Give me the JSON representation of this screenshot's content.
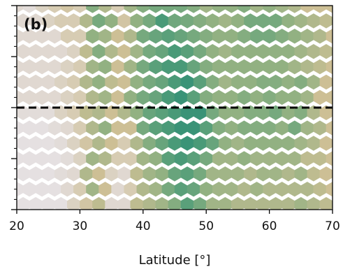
{
  "chart_data": {
    "type": "heatmap",
    "title": "",
    "panel_label": "(b)",
    "xlabel": "Latitude [°]",
    "ylabel": "",
    "xlim": [
      20,
      70
    ],
    "xticks": [
      20,
      30,
      40,
      50,
      60,
      70
    ],
    "xtick_labels": [
      "20",
      "30",
      "40",
      "50",
      "60",
      "70"
    ],
    "ylim": [
      0,
      20
    ],
    "reference_line": {
      "y": 10,
      "style": "dashed",
      "color": "#000000"
    },
    "colormap": [
      "#e9e7f1",
      "#e0d8d1",
      "#cdbf95",
      "#92b182",
      "#5aa07a",
      "#1a8673"
    ],
    "grid": false,
    "legend": "none",
    "hex_rows": [
      {
        "y": 20,
        "x": [
          20,
          22,
          24,
          26,
          28,
          30,
          32,
          34,
          36,
          38,
          40,
          42,
          44,
          46,
          48,
          50,
          52,
          54,
          56,
          58,
          60,
          62,
          64,
          66,
          68,
          70
        ],
        "v": [
          0.2,
          0.15,
          0.25,
          0.3,
          0.35,
          0.3,
          0.65,
          0.5,
          0.3,
          0.55,
          0.65,
          0.7,
          0.7,
          0.7,
          0.65,
          0.55,
          0.6,
          0.6,
          0.65,
          0.55,
          0.6,
          0.55,
          0.5,
          0.4,
          0.4,
          0.4
        ]
      },
      {
        "y": 18.5,
        "x": [
          21,
          23,
          25,
          27,
          29,
          31,
          33,
          35,
          37,
          39,
          41,
          43,
          45,
          47,
          49,
          51,
          53,
          55,
          57,
          59,
          61,
          63,
          65,
          67,
          69
        ],
        "v": [
          0.2,
          0.2,
          0.25,
          0.3,
          0.3,
          0.5,
          0.7,
          0.6,
          0.35,
          0.6,
          0.7,
          0.85,
          0.72,
          0.7,
          0.65,
          0.6,
          0.55,
          0.6,
          0.7,
          0.7,
          0.7,
          0.6,
          0.55,
          0.5,
          0.45
        ]
      },
      {
        "y": 17,
        "x": [
          20,
          22,
          24,
          26,
          28,
          30,
          32,
          34,
          36,
          38,
          40,
          42,
          44,
          46,
          48,
          50,
          52,
          54,
          56,
          58,
          60,
          62,
          64,
          66,
          68,
          70
        ],
        "v": [
          0.2,
          0.2,
          0.2,
          0.2,
          0.3,
          0.3,
          0.6,
          0.55,
          0.4,
          0.5,
          0.7,
          0.75,
          0.8,
          0.75,
          0.7,
          0.65,
          0.6,
          0.6,
          0.65,
          0.7,
          0.7,
          0.65,
          0.6,
          0.55,
          0.5,
          0.4
        ]
      },
      {
        "y": 15.5,
        "x": [
          21,
          23,
          25,
          27,
          29,
          31,
          33,
          35,
          37,
          39,
          41,
          43,
          45,
          47,
          49,
          51,
          53,
          55,
          57,
          59,
          61,
          63,
          65,
          67,
          69
        ],
        "v": [
          0.2,
          0.2,
          0.2,
          0.2,
          0.25,
          0.45,
          0.65,
          0.5,
          0.4,
          0.55,
          0.7,
          0.75,
          0.85,
          0.8,
          0.7,
          0.6,
          0.55,
          0.6,
          0.6,
          0.6,
          0.6,
          0.6,
          0.55,
          0.5,
          0.45
        ]
      },
      {
        "y": 14,
        "x": [
          20,
          22,
          24,
          26,
          28,
          30,
          32,
          34,
          36,
          38,
          40,
          42,
          44,
          46,
          48,
          50,
          52,
          54,
          56,
          58,
          60,
          62,
          64,
          66,
          68,
          70
        ],
        "v": [
          0.2,
          0.2,
          0.2,
          0.2,
          0.25,
          0.3,
          0.55,
          0.6,
          0.4,
          0.55,
          0.7,
          0.8,
          0.85,
          0.85,
          0.75,
          0.65,
          0.6,
          0.6,
          0.6,
          0.6,
          0.6,
          0.6,
          0.55,
          0.5,
          0.45,
          0.4
        ]
      },
      {
        "y": 12.5,
        "x": [
          21,
          23,
          25,
          27,
          29,
          31,
          33,
          35,
          37,
          39,
          41,
          43,
          45,
          47,
          49,
          51,
          53,
          55,
          57,
          59,
          61,
          63,
          65,
          67,
          69
        ],
        "v": [
          0.2,
          0.2,
          0.2,
          0.25,
          0.3,
          0.5,
          0.6,
          0.45,
          0.4,
          0.6,
          0.7,
          0.75,
          0.85,
          0.9,
          0.8,
          0.65,
          0.55,
          0.6,
          0.6,
          0.65,
          0.65,
          0.6,
          0.65,
          0.55,
          0.4
        ]
      },
      {
        "y": 11,
        "x": [
          20,
          22,
          24,
          26,
          28,
          30,
          32,
          34,
          36,
          38,
          40,
          42,
          44,
          46,
          48,
          50,
          52,
          54,
          56,
          58,
          60,
          62,
          64,
          66,
          68,
          70
        ],
        "v": [
          0.2,
          0.2,
          0.2,
          0.2,
          0.25,
          0.3,
          0.5,
          0.55,
          0.4,
          0.6,
          0.7,
          0.75,
          0.85,
          0.9,
          0.8,
          0.65,
          0.6,
          0.6,
          0.65,
          0.6,
          0.65,
          0.6,
          0.6,
          0.55,
          0.4,
          0.4
        ]
      },
      {
        "y": 9.5,
        "x": [
          21,
          23,
          25,
          27,
          29,
          31,
          33,
          35,
          37,
          39,
          41,
          43,
          45,
          47,
          49,
          51,
          53,
          55,
          57,
          59,
          61,
          63,
          65,
          67,
          69
        ],
        "v": [
          0.15,
          0.15,
          0.15,
          0.25,
          0.3,
          0.45,
          0.5,
          0.4,
          0.5,
          0.6,
          0.75,
          0.8,
          0.85,
          0.9,
          0.9,
          0.7,
          0.6,
          0.6,
          0.65,
          0.65,
          0.7,
          0.6,
          0.65,
          0.5,
          0.4
        ]
      },
      {
        "y": 8,
        "x": [
          20,
          22,
          24,
          26,
          28,
          30,
          32,
          34,
          36,
          38,
          40,
          42,
          44,
          46,
          48,
          50,
          52,
          54,
          56,
          58,
          60,
          62,
          64,
          66,
          68,
          70
        ],
        "v": [
          0.1,
          0.1,
          0.1,
          0.15,
          0.2,
          0.3,
          0.5,
          0.6,
          0.4,
          0.4,
          0.7,
          0.8,
          0.85,
          0.9,
          0.9,
          0.8,
          0.65,
          0.6,
          0.65,
          0.65,
          0.65,
          0.6,
          0.7,
          0.55,
          0.5,
          0.4
        ]
      },
      {
        "y": 6.5,
        "x": [
          21,
          23,
          25,
          27,
          29,
          31,
          33,
          35,
          37,
          39,
          41,
          43,
          45,
          47,
          49,
          51,
          53,
          55,
          57,
          59,
          61,
          63,
          65,
          67,
          69
        ],
        "v": [
          0.1,
          0.1,
          0.1,
          0.15,
          0.25,
          0.35,
          0.5,
          0.4,
          0.3,
          0.5,
          0.65,
          0.75,
          0.85,
          0.9,
          0.85,
          0.75,
          0.6,
          0.55,
          0.6,
          0.6,
          0.6,
          0.6,
          0.55,
          0.5,
          0.4
        ]
      },
      {
        "y": 5,
        "x": [
          20,
          22,
          24,
          26,
          28,
          30,
          32,
          34,
          36,
          38,
          40,
          42,
          44,
          46,
          48,
          50,
          52,
          54,
          56,
          58,
          60,
          62,
          64,
          66,
          68,
          70
        ],
        "v": [
          0.1,
          0.1,
          0.1,
          0.1,
          0.15,
          0.25,
          0.55,
          0.5,
          0.3,
          0.3,
          0.55,
          0.6,
          0.8,
          0.85,
          0.8,
          0.7,
          0.55,
          0.55,
          0.6,
          0.55,
          0.55,
          0.55,
          0.55,
          0.45,
          0.45,
          0.4
        ]
      },
      {
        "y": 3.5,
        "x": [
          21,
          23,
          25,
          27,
          29,
          31,
          33,
          35,
          37,
          39,
          41,
          43,
          45,
          47,
          49,
          51,
          53,
          55,
          57,
          59,
          61,
          63,
          65,
          67,
          69
        ],
        "v": [
          0.1,
          0.1,
          0.1,
          0.15,
          0.2,
          0.5,
          0.4,
          0.25,
          0.2,
          0.45,
          0.55,
          0.6,
          0.75,
          0.8,
          0.7,
          0.55,
          0.55,
          0.55,
          0.5,
          0.55,
          0.55,
          0.5,
          0.55,
          0.45,
          0.4
        ]
      },
      {
        "y": 2,
        "x": [
          20,
          22,
          24,
          26,
          28,
          30,
          32,
          34,
          36,
          38,
          40,
          42,
          44,
          46,
          48,
          50,
          52,
          54,
          56,
          58,
          60,
          62,
          64,
          66,
          68,
          70
        ],
        "v": [
          0.1,
          0.1,
          0.1,
          0.1,
          0.2,
          0.3,
          0.55,
          0.4,
          0.2,
          0.3,
          0.5,
          0.55,
          0.7,
          0.8,
          0.75,
          0.6,
          0.55,
          0.55,
          0.5,
          0.55,
          0.5,
          0.5,
          0.5,
          0.5,
          0.45,
          0.4
        ]
      },
      {
        "y": 0.5,
        "x": [
          21,
          23,
          25,
          27,
          29,
          31,
          33,
          35,
          37,
          39,
          41,
          43,
          45,
          47,
          49,
          51,
          53,
          55,
          57,
          59,
          61,
          63,
          65,
          67,
          69
        ],
        "v": [
          0.1,
          0.1,
          0.1,
          0.1,
          0.25,
          0.35,
          0.45,
          0.2,
          0.2,
          0.45,
          0.5,
          0.55,
          0.65,
          0.8,
          0.7,
          0.55,
          0.55,
          0.5,
          0.5,
          0.5,
          0.5,
          0.5,
          0.55,
          0.5,
          0.45
        ]
      }
    ]
  }
}
